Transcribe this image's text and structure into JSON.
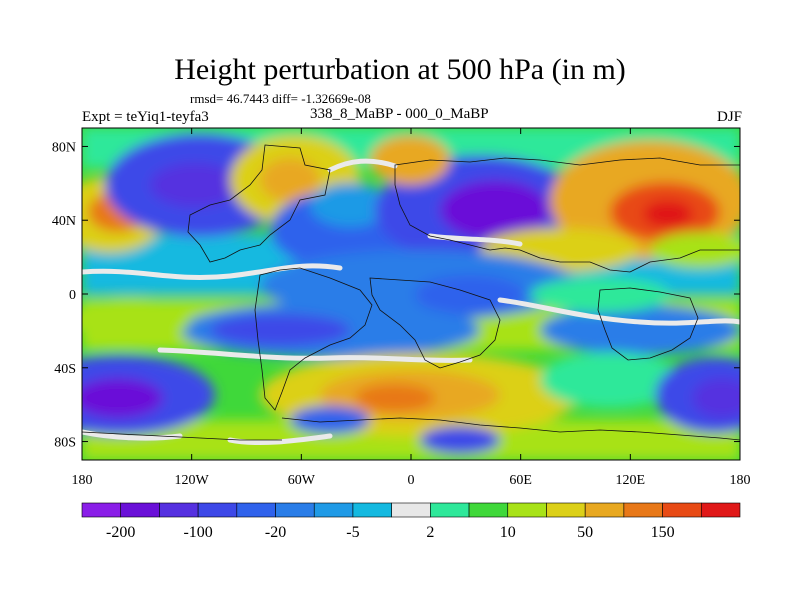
{
  "title": "Height perturbation at 500 hPa (in m)",
  "stats": "rmsd= 46.7443 diff= -1.32669e-08",
  "left_label": "Expt = teYiq1-teyfa3",
  "center_label": "338_8_MaBP - 000_0_MaBP",
  "right_label": "DJF",
  "map": {
    "projection": "cylindrical equidistant",
    "lon_range": [
      -180,
      180
    ],
    "lat_range": [
      -90,
      90
    ],
    "lon_ticks": [
      "180",
      "120W",
      "60W",
      "0",
      "60E",
      "120E",
      "180"
    ],
    "lat_ticks": [
      "80N",
      "40N",
      "0",
      "40S",
      "80S"
    ],
    "coastlines": "paleogeography outline (thin black lines)"
  },
  "colorbar": {
    "colors": [
      "#8a1ee8",
      "#6a10d8",
      "#5530e0",
      "#3d48e8",
      "#2f62ec",
      "#2a7de8",
      "#1f9ae6",
      "#14b9e0",
      "#e8e8e8",
      "#2ee89a",
      "#3fd83a",
      "#a8e218",
      "#dcd018",
      "#e8a820",
      "#e87818",
      "#e84a14",
      "#e01818"
    ],
    "labels": [
      "-200",
      "-100",
      "-20",
      "-5",
      "2",
      "10",
      "50",
      "150"
    ]
  }
}
